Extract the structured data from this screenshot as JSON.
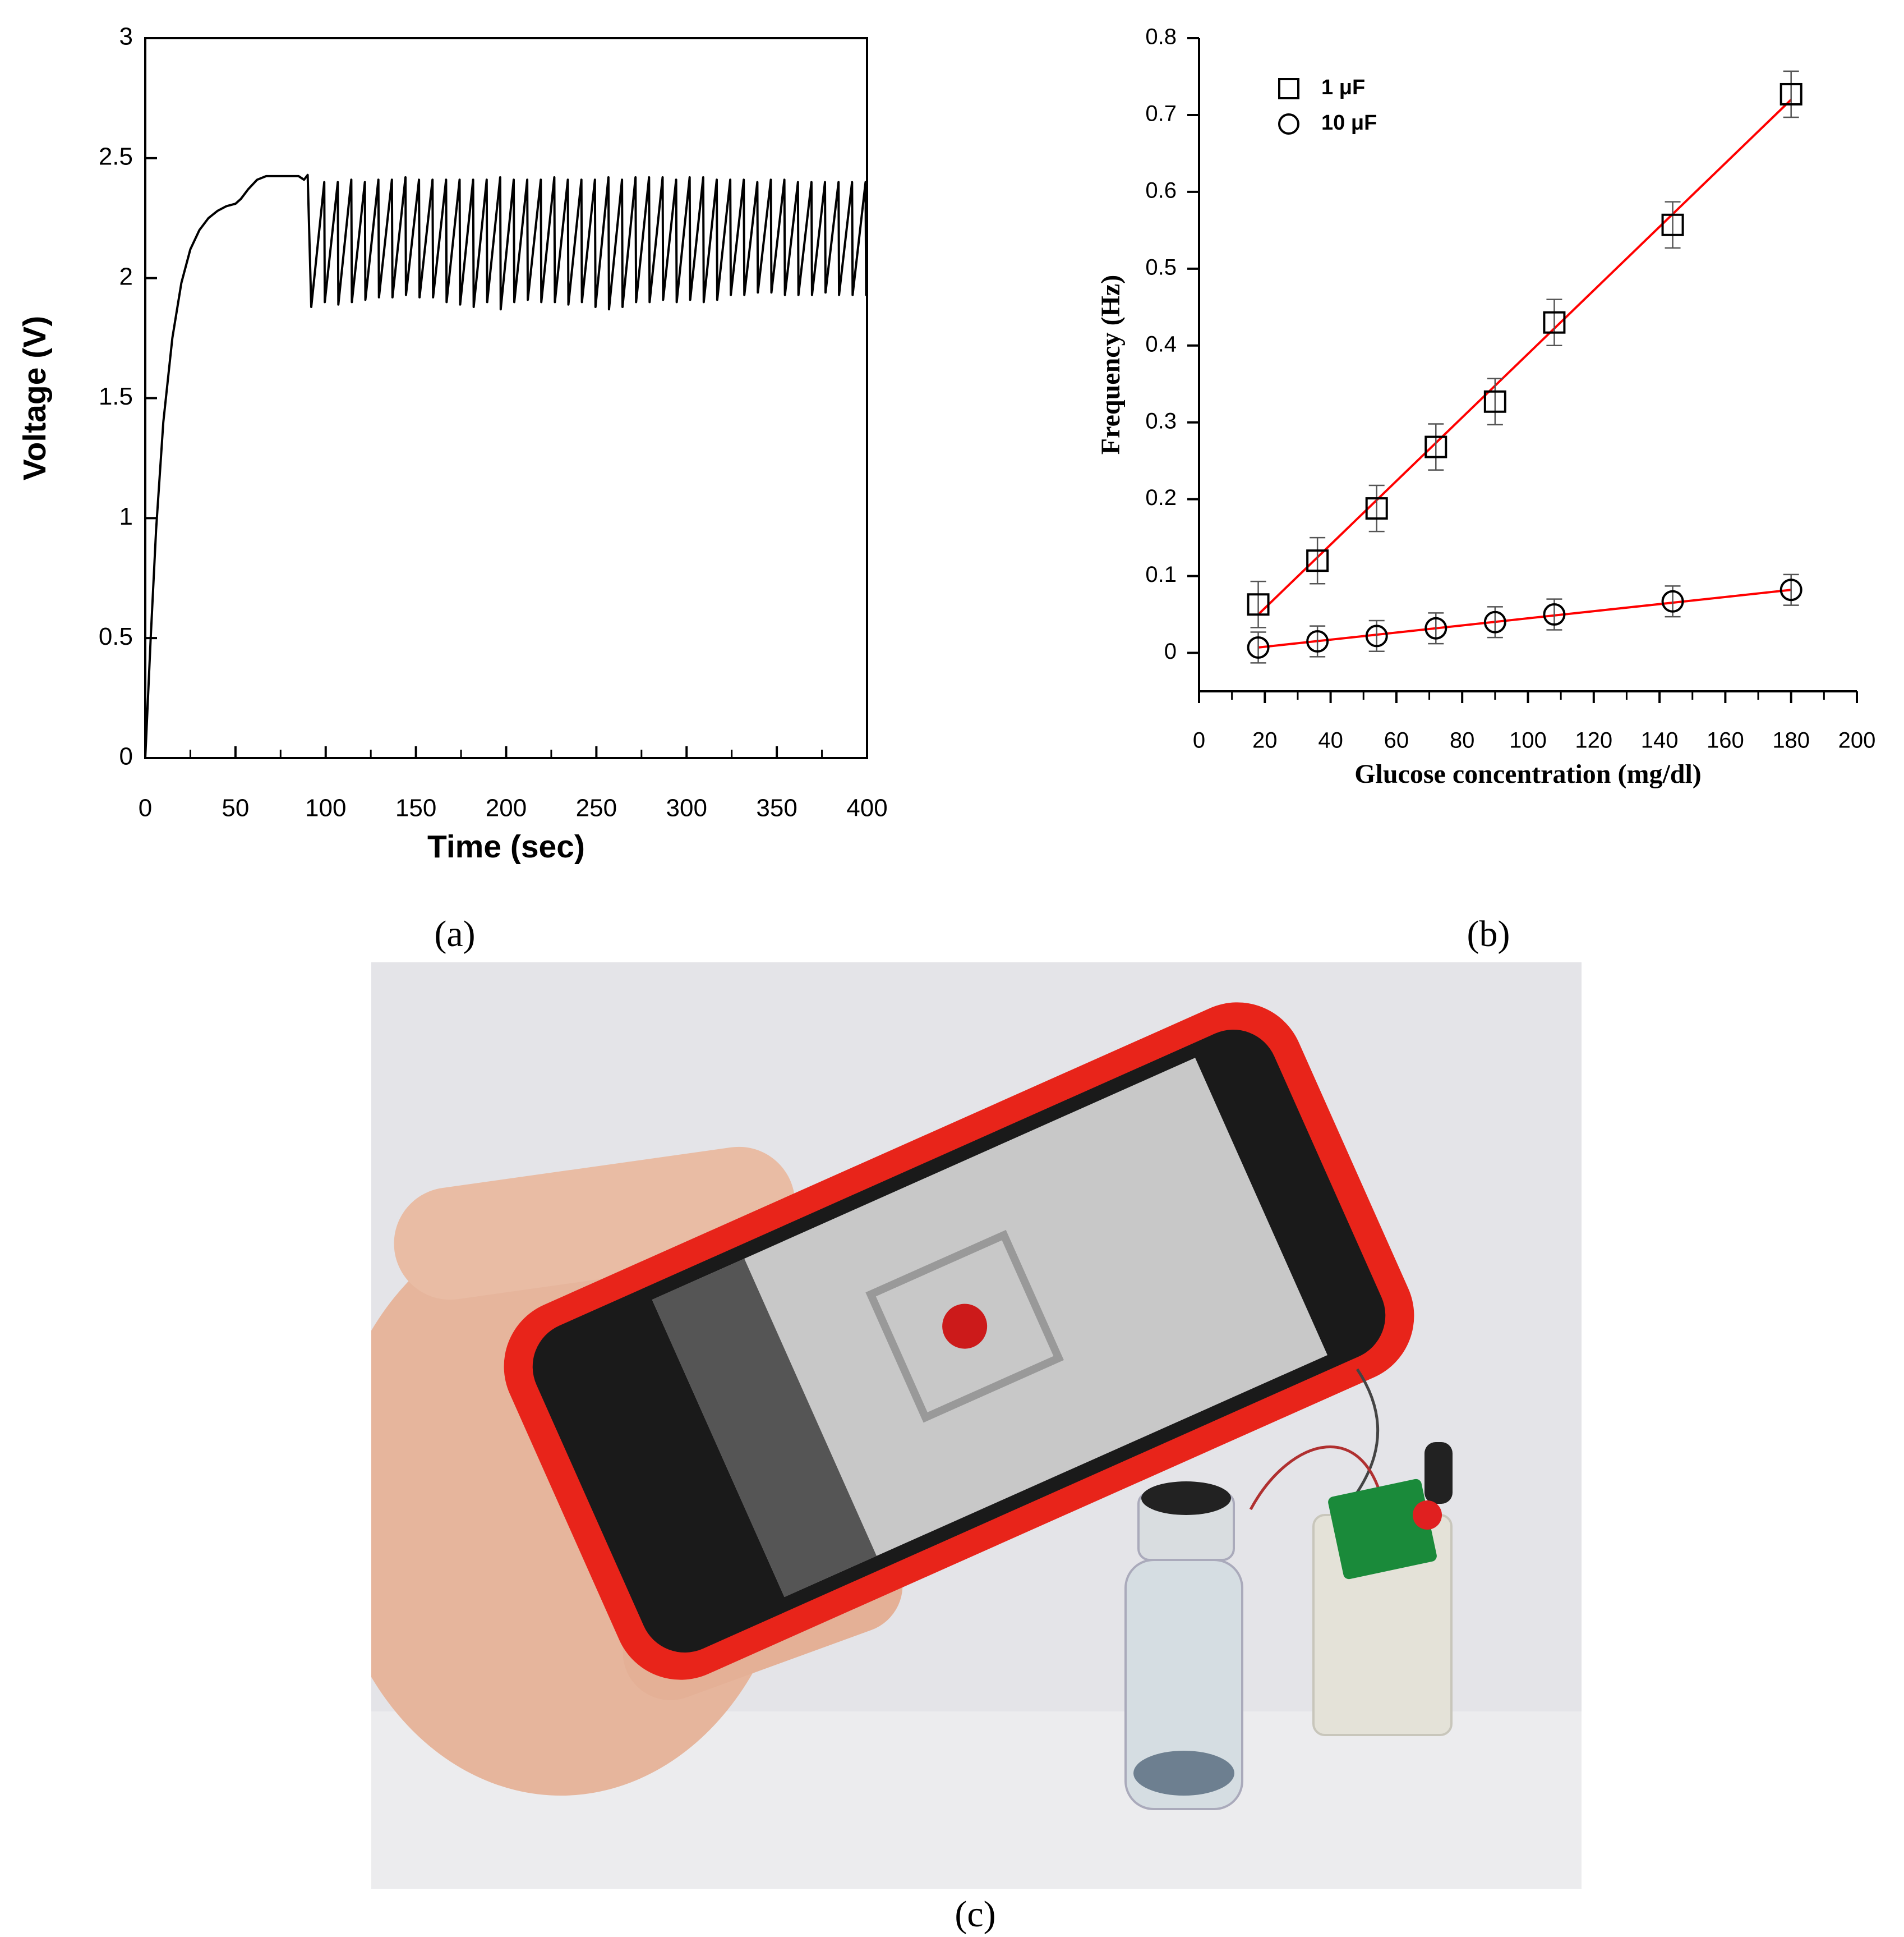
{
  "chart_data": [
    {
      "type": "line",
      "xlabel": "Time (sec)",
      "ylabel": "Voltage (V)",
      "color": "#000000",
      "xlim": [
        0,
        400
      ],
      "ylim": [
        0,
        3
      ],
      "xticks": [
        0,
        50,
        100,
        150,
        200,
        250,
        300,
        350,
        400
      ],
      "xminorticks": [
        25,
        75,
        125,
        175,
        225,
        275,
        325,
        375
      ],
      "yticks": [
        0,
        0.5,
        1,
        1.5,
        2,
        2.5,
        3
      ],
      "frame": "box",
      "tick_direction": "in",
      "x": [
        0,
        3,
        6,
        10,
        15,
        20,
        25,
        30,
        35,
        40,
        45,
        50,
        53,
        57,
        62,
        67,
        75,
        85,
        88,
        90,
        92,
        99.2,
        99.5,
        106.7,
        107,
        114.2,
        114.5,
        121.7,
        122,
        129.2,
        129.5,
        136.7,
        137,
        144.2,
        144.5,
        151.7,
        152,
        159.2,
        159.5,
        166.7,
        167,
        174.2,
        174.5,
        181.7,
        182,
        189.2,
        189.5,
        196.7,
        197,
        204.2,
        204.5,
        211.7,
        212,
        219.2,
        219.5,
        226.7,
        227,
        234.2,
        234.5,
        241.7,
        242,
        249.2,
        249.5,
        256.7,
        257,
        264.2,
        264.5,
        271.7,
        272,
        279.2,
        279.5,
        286.7,
        287,
        294.2,
        294.5,
        301.7,
        302,
        309.2,
        309.5,
        316.7,
        317,
        324.2,
        324.5,
        331.7,
        332,
        339.2,
        339.5,
        346.7,
        347,
        354.2,
        354.5,
        361.7,
        362,
        369.2,
        369.5,
        376.7,
        377,
        384.2,
        384.5,
        391.7,
        392,
        399.2,
        399.5,
        400
      ],
      "values": [
        0,
        0.5,
        0.95,
        1.4,
        1.75,
        1.98,
        2.12,
        2.2,
        2.25,
        2.28,
        2.3,
        2.31,
        2.33,
        2.37,
        2.41,
        2.425,
        2.425,
        2.425,
        2.41,
        2.43,
        1.88,
        2.4,
        1.9,
        2.4,
        1.89,
        2.41,
        1.9,
        2.4,
        1.91,
        2.41,
        1.92,
        2.41,
        1.92,
        2.42,
        1.93,
        2.41,
        1.92,
        2.41,
        1.92,
        2.41,
        1.9,
        2.41,
        1.89,
        2.41,
        1.88,
        2.41,
        1.9,
        2.42,
        1.87,
        2.41,
        1.9,
        2.41,
        1.91,
        2.41,
        1.9,
        2.42,
        1.9,
        2.41,
        1.89,
        2.41,
        1.9,
        2.41,
        1.88,
        2.42,
        1.87,
        2.41,
        1.88,
        2.42,
        1.9,
        2.42,
        1.9,
        2.42,
        1.91,
        2.41,
        1.9,
        2.42,
        1.91,
        2.42,
        1.9,
        2.41,
        1.91,
        2.41,
        1.93,
        2.41,
        1.93,
        2.4,
        1.94,
        2.41,
        1.94,
        2.41,
        1.93,
        2.4,
        1.93,
        2.4,
        1.93,
        2.4,
        1.94,
        2.4,
        1.93,
        2.4,
        1.93,
        2.4,
        1.93,
        2.2
      ]
    },
    {
      "type": "scatter",
      "xlabel": "Glucose concentration (mg/dl)",
      "ylabel": "Frequency (Hz)",
      "xlim": [
        0,
        200
      ],
      "ylim": [
        -0.05,
        0.8
      ],
      "xticks": [
        0,
        20,
        40,
        60,
        80,
        100,
        120,
        140,
        160,
        180,
        200
      ],
      "xminorticks": [
        10,
        30,
        50,
        70,
        90,
        110,
        130,
        150,
        170,
        190
      ],
      "yticks": [
        0,
        0.1,
        0.2,
        0.3,
        0.4,
        0.5,
        0.6,
        0.7,
        0.8
      ],
      "frame": "axes",
      "tick_direction": "out",
      "legend": "upper left",
      "series": [
        {
          "name": "1 μF",
          "marker": "square",
          "color": "#000000",
          "x": [
            18,
            36,
            54,
            72,
            90,
            108,
            144,
            180
          ],
          "values": [
            0.063,
            0.12,
            0.188,
            0.268,
            0.327,
            0.43,
            0.557,
            0.727
          ],
          "errors": [
            0.03,
            0.03,
            0.03,
            0.03,
            0.03,
            0.03,
            0.03,
            0.03
          ]
        },
        {
          "name": "10 μF",
          "marker": "circle",
          "color": "#000000",
          "x": [
            18,
            36,
            54,
            72,
            90,
            108,
            144,
            180
          ],
          "values": [
            0.007,
            0.015,
            0.022,
            0.032,
            0.04,
            0.05,
            0.067,
            0.082
          ],
          "errors": [
            0.02,
            0.02,
            0.02,
            0.02,
            0.02,
            0.02,
            0.02,
            0.02
          ]
        }
      ],
      "fits": [
        {
          "color": "#ff0000",
          "x": [
            18,
            180
          ],
          "values": [
            0.05,
            0.72
          ]
        },
        {
          "color": "#ff0000",
          "x": [
            18,
            180
          ],
          "values": [
            0.007,
            0.082
          ]
        }
      ]
    }
  ],
  "panel_labels": [
    "(a)",
    "(b)",
    "(c)"
  ]
}
